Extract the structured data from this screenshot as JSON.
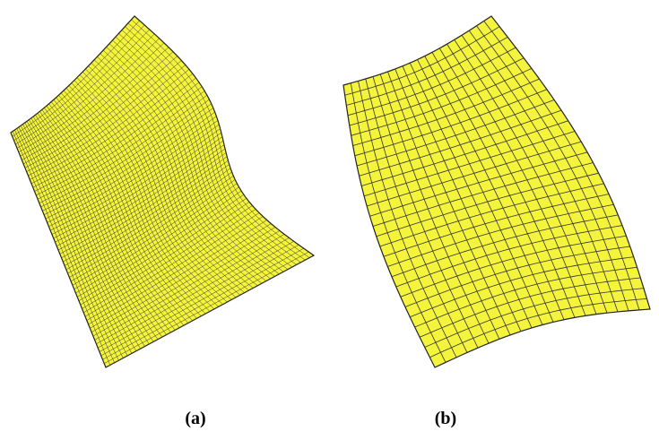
{
  "panels": [
    {
      "label": "(a)"
    },
    {
      "label": "(b)"
    }
  ]
}
